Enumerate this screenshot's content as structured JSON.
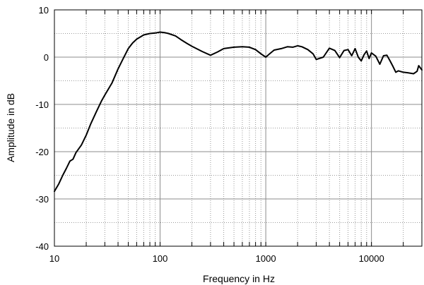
{
  "chart_data": {
    "type": "line",
    "xscale": "log",
    "xlabel": "Frequency in Hz",
    "ylabel": "Amplitude in dB",
    "xlim": [
      10,
      30000
    ],
    "ylim": [
      -40,
      10
    ],
    "x_ticks": [
      10,
      100,
      1000,
      10000
    ],
    "x_tick_labels": [
      "10",
      "100",
      "1000",
      "10000"
    ],
    "y_ticks": [
      10,
      0,
      -10,
      -20,
      -30,
      -40
    ],
    "y_tick_labels": [
      "10",
      "0",
      "-10",
      "-20",
      "-30",
      "-40"
    ],
    "grid": true,
    "series": [
      {
        "x": [
          10,
          11,
          12,
          13,
          14,
          15,
          16,
          18,
          20,
          22,
          25,
          28,
          30,
          35,
          40,
          45,
          50,
          55,
          60,
          70,
          80,
          90,
          100,
          110,
          120,
          140,
          160,
          180,
          200,
          250,
          300,
          350,
          400,
          500,
          600,
          700,
          800,
          900,
          1000,
          1100,
          1200,
          1400,
          1600,
          1800,
          2000,
          2200,
          2500,
          2800,
          3000,
          3500,
          4000,
          4500,
          5000,
          5500,
          6000,
          6500,
          7000,
          7500,
          8000,
          8500,
          9000,
          9500,
          10000,
          11000,
          12000,
          13000,
          14000,
          15000,
          16000,
          17000,
          18000,
          20000,
          22000,
          25000,
          27000,
          28000,
          30000
        ],
        "y": [
          -28.4,
          -26.8,
          -25,
          -23.5,
          -22,
          -21.6,
          -20.2,
          -18.6,
          -16.5,
          -14.2,
          -11.5,
          -9.2,
          -8,
          -5.5,
          -2.5,
          -0.2,
          1.8,
          3,
          3.8,
          4.7,
          5,
          5.1,
          5.3,
          5.2,
          5,
          4.5,
          3.6,
          2.9,
          2.3,
          1.2,
          0.4,
          1.1,
          1.8,
          2.1,
          2.2,
          2.1,
          1.6,
          0.7,
          0,
          0.8,
          1.5,
          1.8,
          2.2,
          2.1,
          2.4,
          2.2,
          1.6,
          0.7,
          -0.5,
          0,
          1.9,
          1.4,
          -0.1,
          1.4,
          1.6,
          0.3,
          1.8,
          0,
          -0.8,
          0.5,
          1.3,
          -0.3,
          0.9,
          0.2,
          -1.5,
          0.3,
          0.4,
          -0.8,
          -2,
          -3.2,
          -2.9,
          -3.2,
          -3.3,
          -3.5,
          -3,
          -1.8,
          -2.7
        ]
      }
    ]
  }
}
